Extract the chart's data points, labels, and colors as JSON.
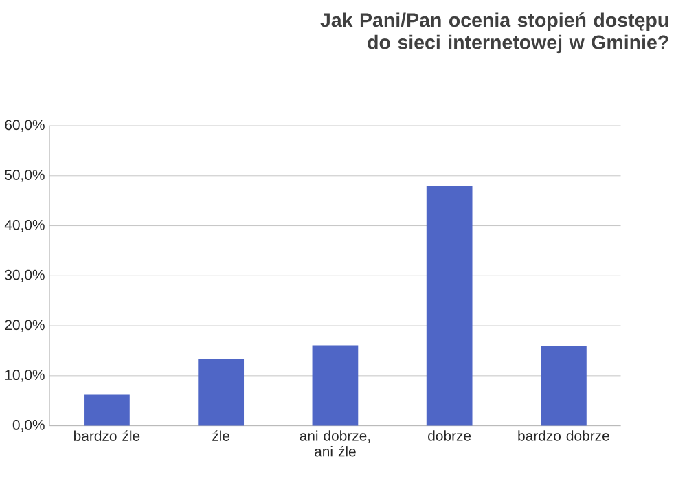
{
  "chart_data": {
    "type": "bar",
    "title": "Jak Pani/Pan ocenia stopień dostępu do sieci internetowej w Gminie?",
    "categories": [
      "bardzo źle",
      "źle",
      "ani dobrze, ani źle",
      "dobrze",
      "bardzo dobrze"
    ],
    "values": [
      6.2,
      13.4,
      16.1,
      48.0,
      16.0
    ],
    "color": "#4f66c6",
    "ylim": [
      0,
      60
    ],
    "yticks": [
      {
        "value": 0,
        "label": "0,0%"
      },
      {
        "value": 10,
        "label": "10,0%"
      },
      {
        "value": 20,
        "label": "20,0%"
      },
      {
        "value": 30,
        "label": "30,0%"
      },
      {
        "value": 40,
        "label": "40,0%"
      },
      {
        "value": 50,
        "label": "50,0%"
      },
      {
        "value": 60,
        "label": "60,0%"
      }
    ],
    "grid": "y"
  }
}
